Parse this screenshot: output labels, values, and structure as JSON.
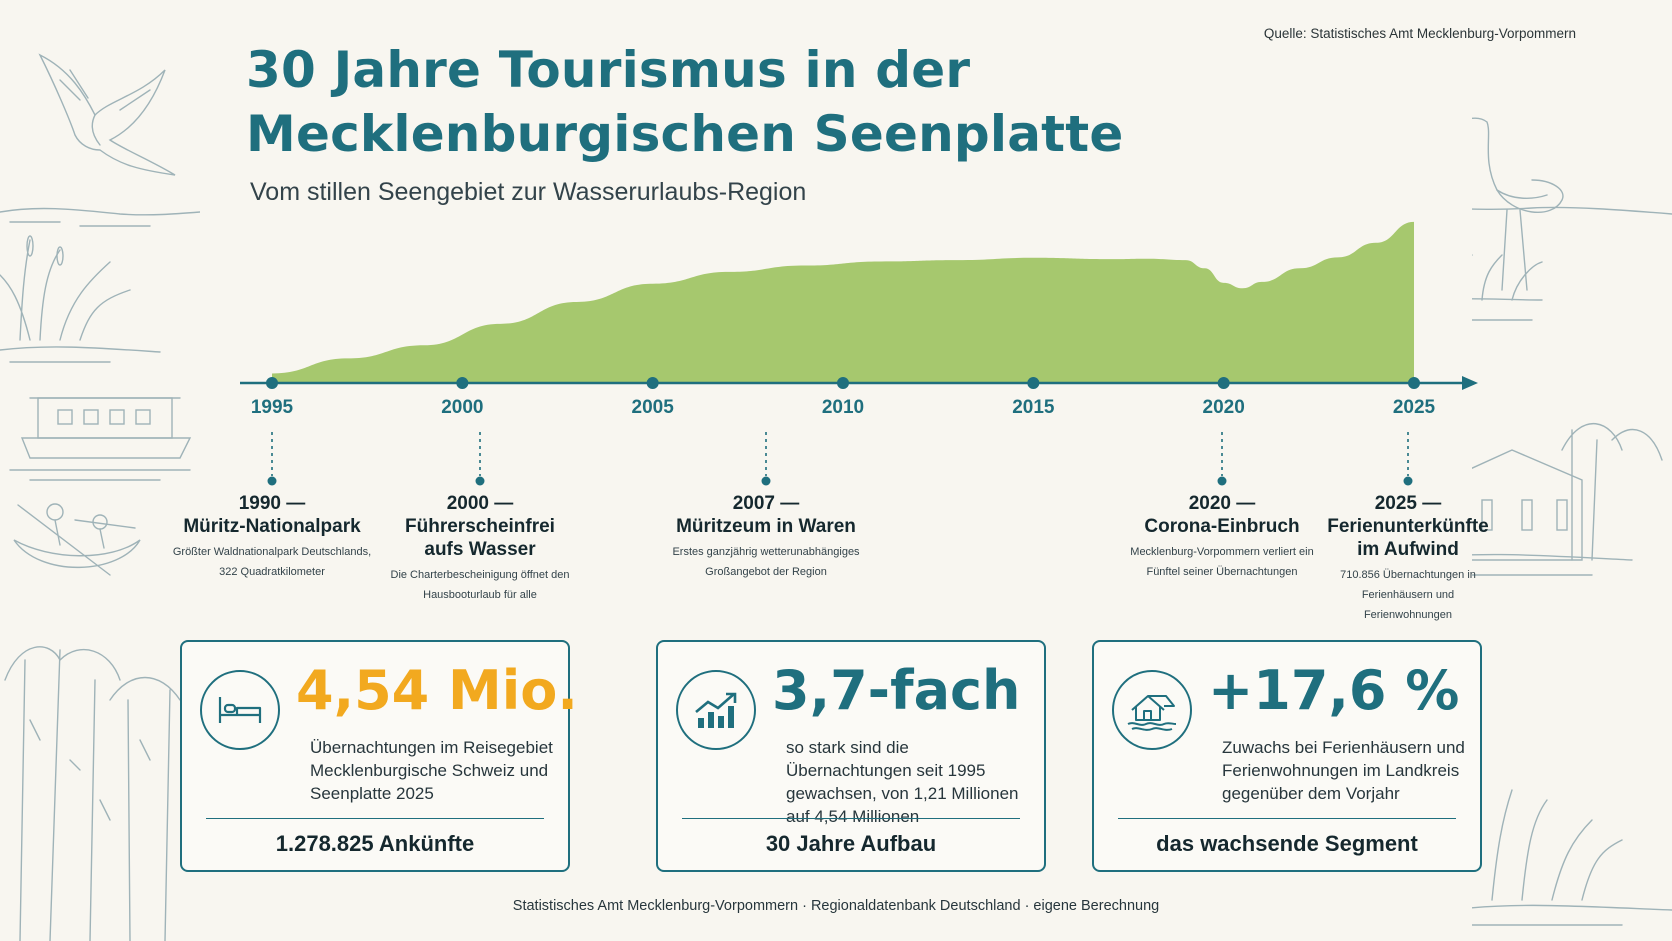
{
  "header": {
    "source": "Quelle: Statistisches Amt Mecklenburg-Vorpommern",
    "title_line1": "30 Jahre Tourismus in der",
    "title_line2": "Mecklenburgischen Seenplatte",
    "subtitle": "Vom stillen Seengebiet zur Wasserurlaubs-Region"
  },
  "chart_data": {
    "type": "area",
    "x": [
      1995,
      1997,
      1999,
      2001,
      2003,
      2005,
      2007,
      2009,
      2011,
      2013,
      2015,
      2017,
      2018,
      2019,
      2019.5,
      2020,
      2020.5,
      2021,
      2022,
      2023,
      2024,
      2025
    ],
    "values": [
      1.21,
      1.54,
      1.83,
      2.3,
      2.78,
      3.18,
      3.44,
      3.58,
      3.67,
      3.7,
      3.75,
      3.72,
      3.73,
      3.7,
      3.52,
      3.2,
      3.08,
      3.22,
      3.52,
      3.76,
      4.08,
      4.54
    ],
    "ylim": [
      1.0,
      4.8
    ],
    "xlim": [
      1995,
      2025
    ],
    "tick_labels": [
      "1995",
      "2000",
      "2005",
      "2010",
      "2015",
      "2020",
      "2025"
    ],
    "tick_values": [
      1995,
      2000,
      2005,
      2010,
      2015,
      2020,
      2025
    ],
    "axis_arrow": true,
    "grid": false,
    "fill_color": "#a6c86e",
    "axis_color": "#1f6f7e"
  },
  "milestones": [
    {
      "year": 1990,
      "head": "1990 —\nMüritz-Nationalpark",
      "text": "Größter Waldnationalpark Deutschlands, 322 Quadratkilometer"
    },
    {
      "year": 2000,
      "head": "2000 —\nFührerscheinfrei aufs Wasser",
      "text": "Die Charterbescheinigung öffnet den Hausbooturlaub für alle"
    },
    {
      "year": 2007,
      "head": "2007 —\nMüritzeum in Waren",
      "text": "Erstes ganzjährig wetterunabhängiges Großangebot der Region"
    },
    {
      "year": 2020,
      "head": "2020 —\nCorona-Einbruch",
      "text": "Mecklenburg-Vorpommern verliert ein Fünftel seiner Übernachtungen"
    },
    {
      "year": 2025,
      "head": "2025 —\nFerienunterkünfte im Aufwind",
      "text": "710.856 Übernachtungen in Ferienhäusern und Ferienwohnungen"
    }
  ],
  "cards": [
    {
      "value": "4,54 Mio.",
      "value_color": "#f2a91f",
      "text": "Übernachtungen im Reisegebiet Mecklenburgische Schweiz und Seenplatte 2025",
      "footer": "1.278.825 Ankünfte",
      "icon": "bed-icon"
    },
    {
      "value": "3,7-fach",
      "value_color": "#1f6f7e",
      "text": "so stark sind die Übernachtungen seit 1995 gewachsen, von 1,21 Millionen auf 4,54 Millionen",
      "footer": "30 Jahre Aufbau",
      "icon": "growth-chart-icon"
    },
    {
      "value": "+17,6 %",
      "value_color": "#1f6f7e",
      "text": "Zuwachs bei Ferienhäusern und Ferienwohnungen im Landkreis gegenüber dem Vorjahr",
      "footer": "das wachsende Segment",
      "icon": "holiday-house-icon"
    }
  ],
  "footer": "Statistisches Amt Mecklenburg-Vorpommern · Regionaldatenbank Deutschland · eigene Berechnung",
  "colors": {
    "accent": "#1f6f7e",
    "highlight": "#f2a91f",
    "background": "#f8f6f0",
    "sketch": "#9fb3b8"
  }
}
